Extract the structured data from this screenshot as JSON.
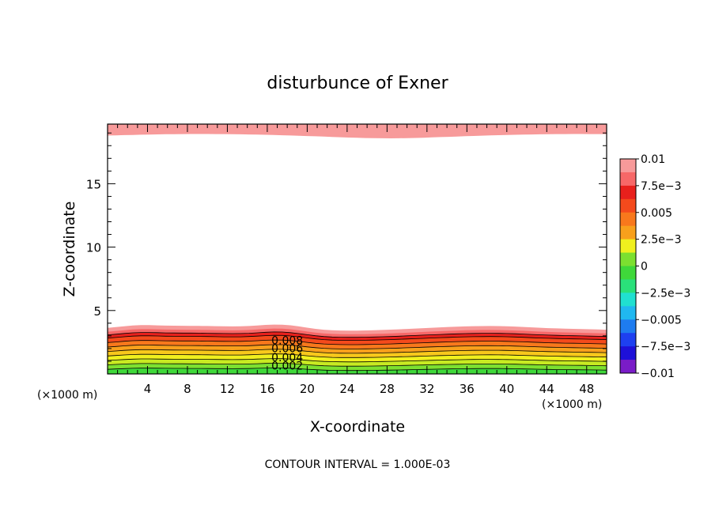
{
  "chart_data": {
    "type": "contour",
    "title": "disturbunce of Exner",
    "xlabel": "X-coordinate",
    "ylabel": "Z-coordinate",
    "x_unit": "(×1000 m)",
    "y_unit": "(×1000 m)",
    "xlim": [
      0,
      50
    ],
    "ylim": [
      0,
      19.7
    ],
    "x_ticks": [
      {
        "value": 4,
        "label": "4"
      },
      {
        "value": 8,
        "label": "8"
      },
      {
        "value": 12,
        "label": "12"
      },
      {
        "value": 16,
        "label": "16"
      },
      {
        "value": 20,
        "label": "20"
      },
      {
        "value": 24,
        "label": "24"
      },
      {
        "value": 28,
        "label": "28"
      },
      {
        "value": 32,
        "label": "32"
      },
      {
        "value": 36,
        "label": "36"
      },
      {
        "value": 40,
        "label": "40"
      },
      {
        "value": 44,
        "label": "44"
      },
      {
        "value": 48,
        "label": "48"
      }
    ],
    "y_ticks": [
      {
        "value": 5,
        "label": "5"
      },
      {
        "value": 10,
        "label": "10"
      },
      {
        "value": 15,
        "label": "15"
      }
    ],
    "contour_interval_text": "CONTOUR INTERVAL = 1.000E-03",
    "contour_labels": [
      {
        "text": "0.008",
        "x": 18.0,
        "z": 2.6
      },
      {
        "text": "0.006",
        "x": 18.0,
        "z": 1.95
      },
      {
        "text": "0.004",
        "x": 18.0,
        "z": 1.25
      },
      {
        "text": "0.002",
        "x": 18.0,
        "z": 0.6
      }
    ],
    "top_band": {
      "z_bottom": 18.8,
      "z_top": 19.7,
      "color": "#f79a9a"
    },
    "bottom_layers": [
      {
        "level": 0.0,
        "color": "#3fd83a",
        "base_top": 0.35
      },
      {
        "level": 0.001,
        "color": "#7ce030",
        "base_top": 0.7
      },
      {
        "level": 0.002,
        "color": "#c8ea22",
        "base_top": 1.05
      },
      {
        "level": 0.003,
        "color": "#f0f01e",
        "base_top": 1.4
      },
      {
        "level": 0.004,
        "color": "#f8c81c",
        "base_top": 1.75
      },
      {
        "level": 0.005,
        "color": "#f8a01c",
        "base_top": 2.1
      },
      {
        "level": 0.006,
        "color": "#f8781c",
        "base_top": 2.45
      },
      {
        "level": 0.007,
        "color": "#f44a1c",
        "base_top": 2.8
      },
      {
        "level": 0.008,
        "color": "#e8201c",
        "base_top": 3.05
      },
      {
        "level": 0.009,
        "color": "#f76868",
        "base_top": 3.3
      },
      {
        "level": 0.01,
        "color": "#f79a9a",
        "base_top": 3.6
      }
    ],
    "colorbar": [
      {
        "color": "#f79a9a",
        "label": "0.01"
      },
      {
        "color": "#f76868",
        "label": ""
      },
      {
        "color": "#e8201c",
        "label": "7.5e-3"
      },
      {
        "color": "#f44a1c",
        "label": ""
      },
      {
        "color": "#f8781c",
        "label": "0.005"
      },
      {
        "color": "#f8a01c",
        "label": ""
      },
      {
        "color": "#f0f01e",
        "label": "2.5e-3"
      },
      {
        "color": "#7ce030",
        "label": ""
      },
      {
        "color": "#3fd83a",
        "label": "0"
      },
      {
        "color": "#2ae07a",
        "label": ""
      },
      {
        "color": "#20e0d0",
        "label": "-2.5e-3"
      },
      {
        "color": "#20b8f0",
        "label": ""
      },
      {
        "color": "#1e7cf0",
        "label": "-0.005"
      },
      {
        "color": "#1e40f0",
        "label": ""
      },
      {
        "color": "#1e10d8",
        "label": "-7.5e-3"
      },
      {
        "color": "#7a1cc8",
        "label": "-0.01"
      }
    ]
  }
}
